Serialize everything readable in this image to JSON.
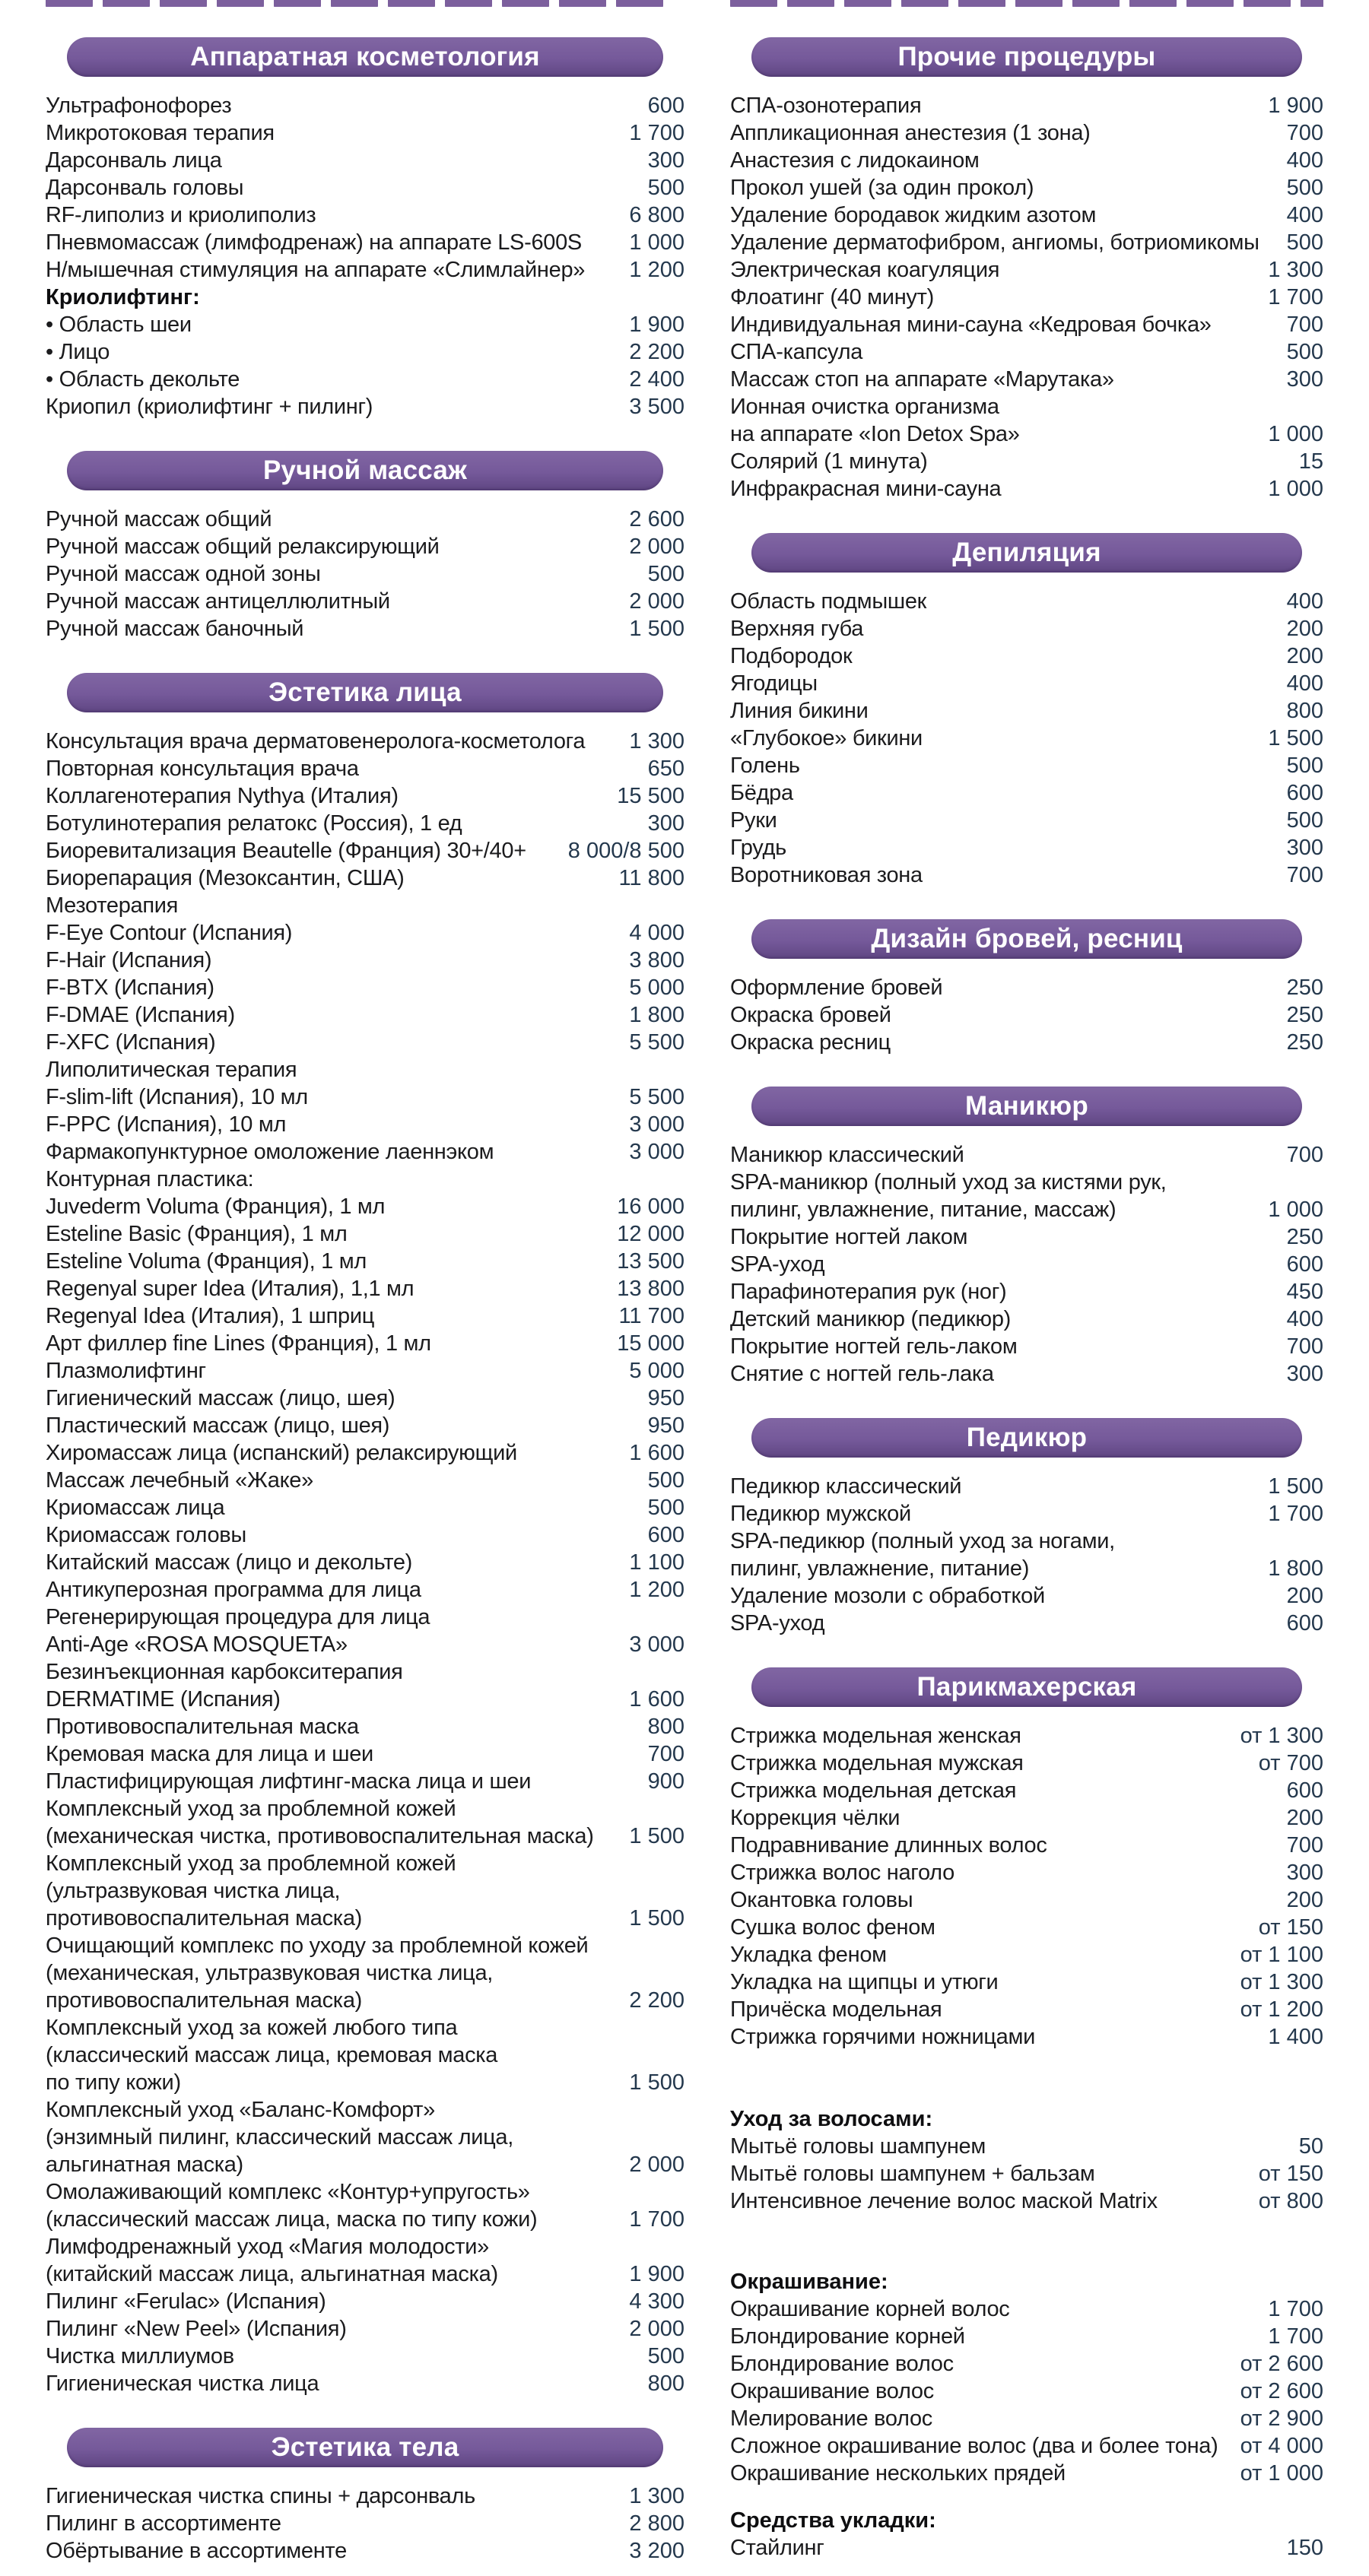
{
  "accent_color": "#75599a",
  "price_color": "#24384d",
  "columns": [
    {
      "sections": [
        {
          "title": "Аппаратная косметология",
          "items": [
            {
              "t": "Ультрафонофорез",
              "p": "600"
            },
            {
              "t": "Микротоковая терапия",
              "p": "1 700"
            },
            {
              "t": "Дарсонваль лица",
              "p": "300"
            },
            {
              "t": "Дарсонваль головы",
              "p": "500"
            },
            {
              "t": "RF-липолиз и криолиполиз",
              "p": "6 800"
            },
            {
              "t": "Пневмомассаж (лимфодренаж) на аппарате LS-600S",
              "p": "1 000"
            },
            {
              "t": "Н/мышечная стимуляция на аппарате «Слимлайнер»",
              "p": "1 200"
            },
            {
              "t": "Криолифтинг:",
              "p": "",
              "b": true
            },
            {
              "t": "• Область шеи",
              "p": "1 900"
            },
            {
              "t": "• Лицо",
              "p": "2 200"
            },
            {
              "t": "• Область декольте",
              "p": "2 400"
            },
            {
              "t": "Криопил (криолифтинг + пилинг)",
              "p": "3 500"
            }
          ]
        },
        {
          "title": "Ручной массаж",
          "items": [
            {
              "t": "Ручной массаж общий",
              "p": "2 600"
            },
            {
              "t": "Ручной массаж общий релаксирующий",
              "p": "2 000"
            },
            {
              "t": "Ручной массаж одной зоны",
              "p": "500"
            },
            {
              "t": "Ручной массаж антицеллюлитный",
              "p": "2 000"
            },
            {
              "t": "Ручной массаж баночный",
              "p": "1 500"
            }
          ]
        },
        {
          "title": "Эстетика лица",
          "items": [
            {
              "t": "Консультация врача дерматовенеролога-косметолога",
              "p": "1 300"
            },
            {
              "t": "Повторная консультация врача",
              "p": "650"
            },
            {
              "t": "Коллагенотерапия Nythya (Италия)",
              "p": "15 500"
            },
            {
              "t": "Ботулинотерапия релатокс (Россия), 1 ед",
              "p": "300"
            },
            {
              "t": "Биоревитализация Beautelle (Франция) 30+/40+",
              "p": "8 000/8 500"
            },
            {
              "t": "Биорепарация (Мезоксантин, США)",
              "p": "11 800"
            },
            {
              "t": "Мезотерапия",
              "p": ""
            },
            {
              "t": "F-Eye Contour (Испания)",
              "p": "4 000"
            },
            {
              "t": "F-Hair (Испания)",
              "p": "3 800"
            },
            {
              "t": "F-BTX (Испания)",
              "p": "5 000"
            },
            {
              "t": "F-DMAE (Испания)",
              "p": "1 800"
            },
            {
              "t": "F-XFC (Испания)",
              "p": "5 500"
            },
            {
              "t": "Липолитическая терапия",
              "p": ""
            },
            {
              "t": "F-slim-lift (Испания), 10 мл",
              "p": "5 500"
            },
            {
              "t": "F-PPC (Испания), 10 мл",
              "p": "3 000"
            },
            {
              "t": "Фармакопунктурное омоложение лаеннэком",
              "p": "3 000"
            },
            {
              "t": "Контурная пластика:",
              "p": ""
            },
            {
              "t": "Juvederm Voluma (Франция), 1 мл",
              "p": "16 000"
            },
            {
              "t": "Esteline Basic (Франция), 1 мл",
              "p": "12 000"
            },
            {
              "t": "Esteline Voluma (Франция), 1 мл",
              "p": "13 500"
            },
            {
              "t": "Regenyal super Idea (Италия), 1,1 мл",
              "p": "13 800"
            },
            {
              "t": "Regenyal Idea (Италия), 1 шприц",
              "p": "11 700"
            },
            {
              "t": "Арт филлер fine Lines (Франция), 1 мл",
              "p": "15 000"
            },
            {
              "t": "Плазмолифтинг",
              "p": "5 000"
            },
            {
              "t": "Гигиенический массаж (лицо, шея)",
              "p": "950"
            },
            {
              "t": "Пластический массаж (лицо, шея)",
              "p": "950"
            },
            {
              "t": "Хиромассаж лица (испанский) релаксирующий",
              "p": "1 600"
            },
            {
              "t": "Массаж лечебный «Жаке»",
              "p": "500"
            },
            {
              "t": "Криомассаж лица",
              "p": "500"
            },
            {
              "t": "Криомассаж головы",
              "p": "600"
            },
            {
              "t": "Китайский массаж (лицо и декольте)",
              "p": "1 100"
            },
            {
              "t": "Антикуперозная программа для лица",
              "p": "1 200"
            },
            {
              "t": "Регенерирующая процедура для лица",
              "p": ""
            },
            {
              "t": "Anti-Age «ROSA MOSQUETA»",
              "p": "3 000"
            },
            {
              "t": "Безинъекционная карбокситерапия",
              "p": ""
            },
            {
              "t": "DERMATIME (Испания)",
              "p": "1 600"
            },
            {
              "t": "Противовоспалительная маска",
              "p": "800"
            },
            {
              "t": "Кремовая маска для лица и шеи",
              "p": "700"
            },
            {
              "t": "Пластифицирующая лифтинг-маска лица и шеи",
              "p": "900"
            },
            {
              "t": "Комплексный уход за проблемной кожей",
              "p": ""
            },
            {
              "t": "(механическая чистка, противовоспалительная маска)",
              "p": "1 500"
            },
            {
              "t": "Комплексный уход за проблемной кожей",
              "p": ""
            },
            {
              "t": "(ультразвуковая чистка лица,",
              "p": ""
            },
            {
              "t": "противовоспалительная маска)",
              "p": "1 500"
            },
            {
              "t": "Очищающий комплекс по уходу за проблемной кожей",
              "p": ""
            },
            {
              "t": "(механическая, ультразвуковая чистка лица,",
              "p": ""
            },
            {
              "t": "противовоспалительная маска)",
              "p": "2 200"
            },
            {
              "t": "Комплексный уход за кожей любого типа",
              "p": ""
            },
            {
              "t": "(классический массаж лица, кремовая маска",
              "p": ""
            },
            {
              "t": "по типу кожи)",
              "p": "1 500"
            },
            {
              "t": "Комплексный уход «Баланс-Комфорт»",
              "p": ""
            },
            {
              "t": "(энзимный пилинг, классический массаж лица,",
              "p": ""
            },
            {
              "t": "альгинатная маска)",
              "p": "2 000"
            },
            {
              "t": "Омолаживающий комплекс «Контур+упругость»",
              "p": ""
            },
            {
              "t": "(классический массаж лица, маска по типу кожи)",
              "p": "1 700"
            },
            {
              "t": "Лимфодренажный уход «Магия молодости»",
              "p": ""
            },
            {
              "t": "(китайский массаж лица, альгинатная маска)",
              "p": "1 900"
            },
            {
              "t": "Пилинг «Ferulac» (Испания)",
              "p": "4 300"
            },
            {
              "t": "Пилинг «New Peel» (Испания)",
              "p": "2 000"
            },
            {
              "t": "Чистка миллиумов",
              "p": "500"
            },
            {
              "t": "Гигиеническая чистка лица",
              "p": "800"
            }
          ]
        },
        {
          "title": "Эстетика тела",
          "items": [
            {
              "t": "Гигиеническая чистка спины + дарсонваль",
              "p": "1 300"
            },
            {
              "t": "Пилинг в ассортименте",
              "p": "2 800"
            },
            {
              "t": "Обёртывание в ассортименте",
              "p": "3 200"
            }
          ]
        }
      ]
    },
    {
      "sections": [
        {
          "title": "Прочие процедуры",
          "items": [
            {
              "t": "СПА-озонотерапия",
              "p": "1 900"
            },
            {
              "t": "Аппликационная анестезия (1 зона)",
              "p": "700"
            },
            {
              "t": "Анастезия с лидокаином",
              "p": "400"
            },
            {
              "t": "Прокол ушей (за один прокол)",
              "p": "500"
            },
            {
              "t": "Удаление бородавок жидким азотом",
              "p": "400"
            },
            {
              "t": "Удаление дерматофибром, ангиомы, ботриомикомы",
              "p": "500"
            },
            {
              "t": "Электрическая коагуляция",
              "p": "1 300"
            },
            {
              "t": "Флоатинг (40 минут)",
              "p": "1 700"
            },
            {
              "t": "Индивидуальная мини-сауна «Кедровая бочка»",
              "p": "700"
            },
            {
              "t": "СПА-капсула",
              "p": "500"
            },
            {
              "t": "Массаж стоп на аппарате «Марутака»",
              "p": "300"
            },
            {
              "t": "Ионная очистка организма",
              "p": ""
            },
            {
              "t": "на аппарате «Ion Detox Spa»",
              "p": "1 000"
            },
            {
              "t": "Солярий (1 минута)",
              "p": "15"
            },
            {
              "t": "Инфракрасная мини-сауна",
              "p": "1 000"
            }
          ]
        },
        {
          "title": "Депиляция",
          "items": [
            {
              "t": "Область подмышек",
              "p": "400"
            },
            {
              "t": "Верхняя губа",
              "p": "200"
            },
            {
              "t": "Подбородок",
              "p": "200"
            },
            {
              "t": "Ягодицы",
              "p": "400"
            },
            {
              "t": "Линия бикини",
              "p": "800"
            },
            {
              "t": "«Глубокое» бикини",
              "p": "1 500"
            },
            {
              "t": "Голень",
              "p": "500"
            },
            {
              "t": "Бёдра",
              "p": "600"
            },
            {
              "t": "Руки",
              "p": "500"
            },
            {
              "t": "Грудь",
              "p": "300"
            },
            {
              "t": "Воротниковая зона",
              "p": "700"
            }
          ]
        },
        {
          "title": "Дизайн бровей, ресниц",
          "items": [
            {
              "t": "Оформление бровей",
              "p": "250"
            },
            {
              "t": "Окраска бровей",
              "p": "250"
            },
            {
              "t": "Окраска ресниц",
              "p": "250"
            }
          ]
        },
        {
          "title": "Маникюр",
          "items": [
            {
              "t": "Маникюр классический",
              "p": "700"
            },
            {
              "t": "SPA-маникюр (полный уход за кистями рук,",
              "p": ""
            },
            {
              "t": "пилинг, увлажнение, питание, массаж)",
              "p": "1 000"
            },
            {
              "t": "Покрытие ногтей лаком",
              "p": "250"
            },
            {
              "t": "SPA-уход",
              "p": "600"
            },
            {
              "t": "Парафинотерапия рук (ног)",
              "p": "450"
            },
            {
              "t": "Детский маникюр (педикюр)",
              "p": "400"
            },
            {
              "t": "Покрытие ногтей гель-лаком",
              "p": "700"
            },
            {
              "t": "Снятие с ногтей гель-лака",
              "p": "300"
            }
          ]
        },
        {
          "title": "Педикюр",
          "items": [
            {
              "t": "Педикюр классический",
              "p": "1 500"
            },
            {
              "t": "Педикюр мужской",
              "p": "1 700"
            },
            {
              "t": "SPA-педикюр (полный уход за ногами,",
              "p": ""
            },
            {
              "t": "пилинг, увлажнение, питание)",
              "p": "1 800"
            },
            {
              "t": "Удаление мозоли с обработкой",
              "p": "200"
            },
            {
              "t": "SPA-уход",
              "p": "600"
            }
          ]
        },
        {
          "title": "Парикмахерская",
          "items": [
            {
              "t": "Стрижка модельная женская",
              "p": "от 1 300"
            },
            {
              "t": "Стрижка модельная мужская",
              "p": "от 700"
            },
            {
              "t": "Стрижка модельная детская",
              "p": "600"
            },
            {
              "t": "Коррекция чёлки",
              "p": "200"
            },
            {
              "t": "Подравнивание длинных волос",
              "p": "700"
            },
            {
              "t": "Стрижка волос наголо",
              "p": "300"
            },
            {
              "t": "Окантовка головы",
              "p": "200"
            },
            {
              "t": "Сушка волос феном",
              "p": "от 150"
            },
            {
              "t": "Укладка феном",
              "p": "от 1 100"
            },
            {
              "t": "Укладка на щипцы и утюги",
              "p": "от 1 300"
            },
            {
              "t": "Причёска модельная",
              "p": "от 1 200"
            },
            {
              "t": "Стрижка горячими ножницами",
              "p": "1 400"
            },
            {
              "t": "Уход за волосами:",
              "p": "",
              "b": true,
              "mt": 72
            },
            {
              "t": "Мытьё головы шампунем",
              "p": "50"
            },
            {
              "t": "Мытьё головы шампунем + бальзам",
              "p": "от 150"
            },
            {
              "t": "Интенсивное лечение волос маской Matrix",
              "p": "от 800"
            },
            {
              "t": "Окрашивание:",
              "p": "",
              "b": true,
              "mt": 70
            },
            {
              "t": "Окрашивание корней волос",
              "p": "1 700"
            },
            {
              "t": "Блондирование корней",
              "p": "1 700"
            },
            {
              "t": "Блондирование волос",
              "p": "от 2 600"
            },
            {
              "t": "Окрашивание волос",
              "p": "от 2 600"
            },
            {
              "t": "Мелирование волос",
              "p": "от 2 900"
            },
            {
              "t": "Сложное окрашивание волос (два и более тона)",
              "p": "от 4 000"
            },
            {
              "t": "Окрашивание нескольких прядей",
              "p": "от 1 000"
            },
            {
              "t": "Средства укладки:",
              "p": "",
              "b": true,
              "mt": 26
            },
            {
              "t": "Стайлинг",
              "p": "150"
            }
          ]
        }
      ]
    }
  ]
}
